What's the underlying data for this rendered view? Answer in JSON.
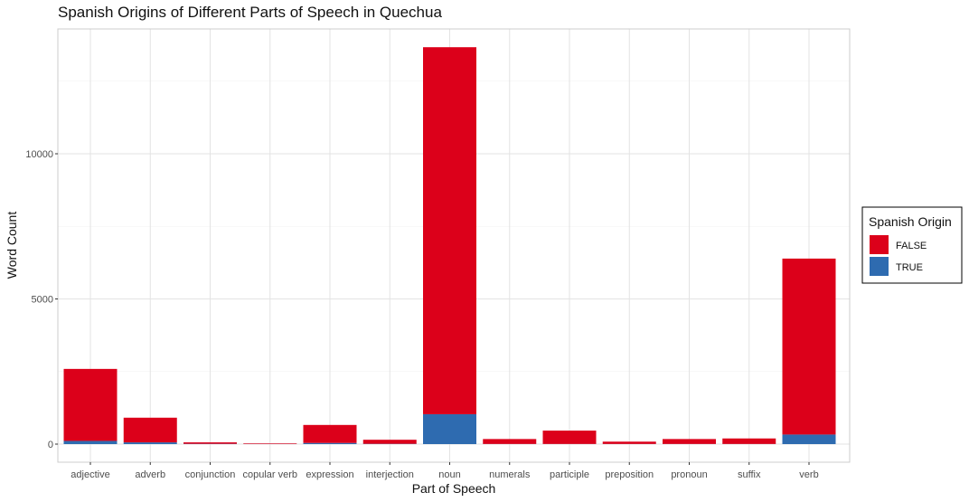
{
  "chart_data": {
    "type": "bar",
    "stacked": true,
    "title": "Spanish Origins of Different Parts of Speech in Quechua",
    "xlabel": "Part of Speech",
    "ylabel": "Word Count",
    "ylim": [
      0,
      14500
    ],
    "yticks": [
      0,
      5000,
      10000
    ],
    "grid": true,
    "legend_position": "right",
    "legend_title": "Spanish Origin",
    "categories": [
      "adjective",
      "adverb",
      "conjunction",
      "copular verb",
      "expression",
      "interjection",
      "noun",
      "numerals",
      "participle",
      "preposition",
      "pronoun",
      "suffix",
      "verb"
    ],
    "series": [
      {
        "name": "FALSE",
        "color": "#dc001a",
        "values": [
          2480,
          850,
          50,
          20,
          620,
          140,
          12640,
          170,
          460,
          80,
          170,
          190,
          6060
        ]
      },
      {
        "name": "TRUE",
        "color": "#2e6bb0",
        "values": [
          110,
          60,
          10,
          5,
          40,
          10,
          1030,
          5,
          5,
          5,
          5,
          5,
          330
        ]
      }
    ]
  }
}
